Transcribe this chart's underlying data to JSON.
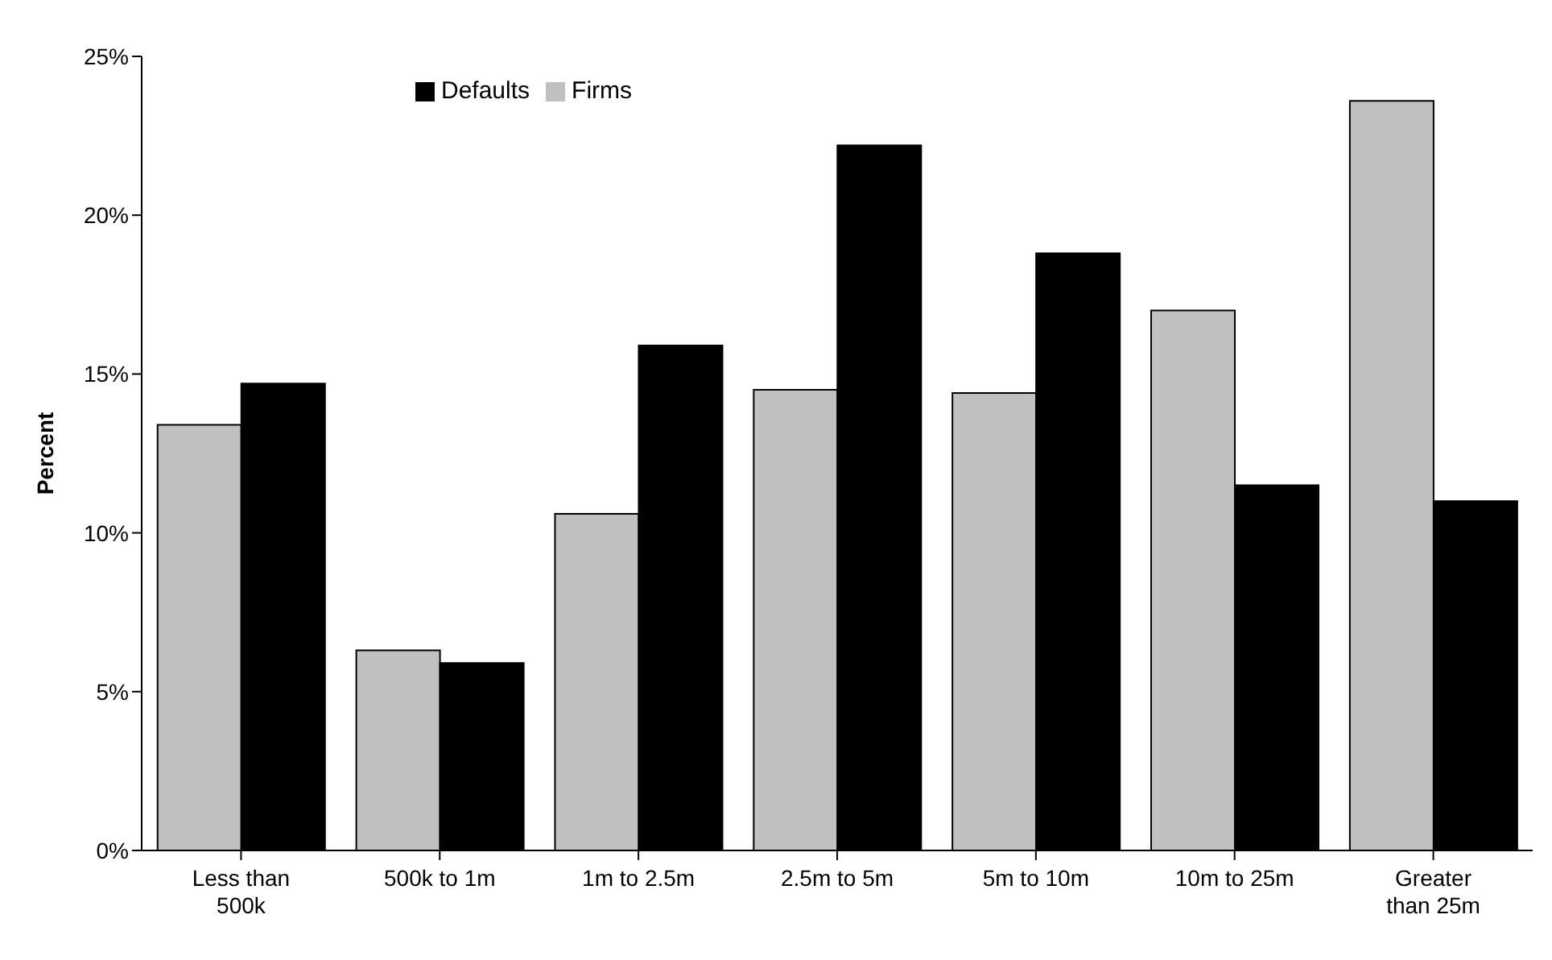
{
  "chart_data": {
    "type": "bar",
    "ylabel": "Percent",
    "categories": [
      "Less than 500k",
      "500k to 1m",
      "1m to 2.5m",
      "2.5m to 5m",
      "5m to 10m",
      "10m to 25m",
      "Greater than 25m"
    ],
    "series": [
      {
        "name": "Firms",
        "color": "#c0c0c0",
        "values": [
          13.4,
          6.3,
          10.6,
          14.5,
          14.4,
          17.0,
          23.6
        ]
      },
      {
        "name": "Defaults",
        "color": "#000000",
        "values": [
          14.7,
          5.9,
          15.9,
          22.2,
          18.8,
          11.5,
          11.0
        ]
      }
    ],
    "ylim": [
      0,
      25
    ],
    "yticks": [
      {
        "value": 0,
        "label": "0%"
      },
      {
        "value": 5,
        "label": "5%"
      },
      {
        "value": 10,
        "label": "10%"
      },
      {
        "value": 15,
        "label": "15%"
      },
      {
        "value": 20,
        "label": "20%"
      },
      {
        "value": 25,
        "label": "25%"
      }
    ],
    "grid": false,
    "legend": "top left"
  }
}
